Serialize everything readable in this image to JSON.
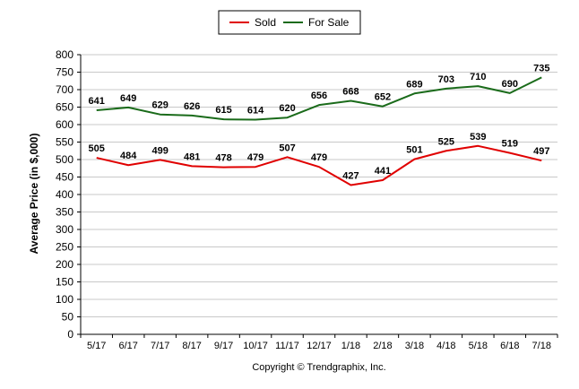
{
  "chart_data": {
    "type": "line",
    "categories": [
      "5/17",
      "6/17",
      "7/17",
      "8/17",
      "9/17",
      "10/17",
      "11/17",
      "12/17",
      "1/18",
      "2/18",
      "3/18",
      "4/18",
      "5/18",
      "6/18",
      "7/18"
    ],
    "series": [
      {
        "name": "Sold",
        "color": "#e00000",
        "values": [
          505,
          484,
          499,
          481,
          478,
          479,
          507,
          479,
          427,
          441,
          501,
          525,
          539,
          519,
          497
        ]
      },
      {
        "name": "For Sale",
        "color": "#1a6b1a",
        "values": [
          641,
          649,
          629,
          626,
          615,
          614,
          620,
          656,
          668,
          652,
          689,
          703,
          710,
          690,
          735
        ]
      }
    ],
    "ylabel": "Average Price (in $,000)",
    "ylim": [
      0,
      800
    ],
    "ystep": 50,
    "grid": true,
    "legend_position": "top-center",
    "copyright": "Copyright © Trendgraphix, Inc."
  }
}
